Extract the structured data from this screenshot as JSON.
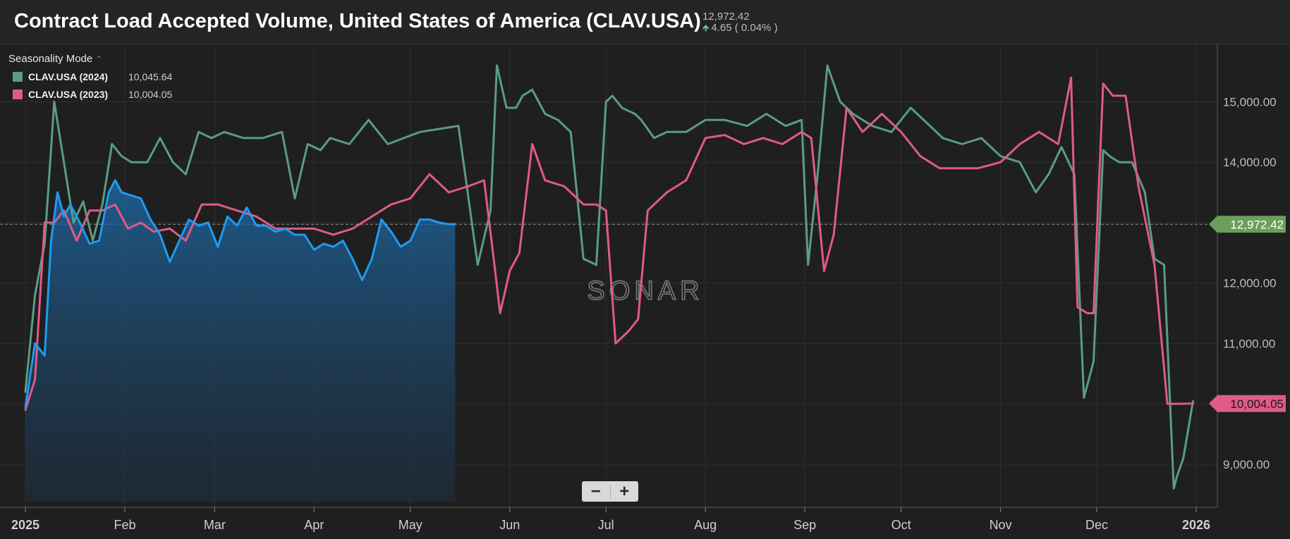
{
  "header": {
    "title": "Contract Load Accepted Volume, United States of America (CLAV.USA)",
    "price": "12,972.42",
    "change": "4.65 ( 0.04% )",
    "change_direction": "up"
  },
  "legend": {
    "mode_label": "Seasonality Mode",
    "mode_icon": "chevron-up-icon",
    "items": [
      {
        "name": "CLAV.USA (2024)",
        "value": "10,045.64",
        "color": "#5a9c86"
      },
      {
        "name": "CLAV.USA (2023)",
        "value": "10,004.05",
        "color": "#e05a8a"
      }
    ]
  },
  "watermark": "SONAR",
  "zoom": {
    "minus": "−",
    "plus": "+"
  },
  "colors": {
    "background": "#1f1f1f",
    "current_year": "#1e9bf0",
    "series_2024": "#5a9c86",
    "series_2023": "#e05a8a",
    "grid": "#2e2e2e"
  },
  "chart_data": {
    "type": "line",
    "mode": "seasonality",
    "x_range": [
      "2025-01-01",
      "2026-01-01"
    ],
    "x_ticks": [
      "2025",
      "Feb",
      "Mar",
      "Apr",
      "May",
      "Jun",
      "Jul",
      "Aug",
      "Sep",
      "Oct",
      "Nov",
      "Dec",
      "2026"
    ],
    "y_ticks": [
      9000,
      10000,
      11000,
      12000,
      13000,
      14000,
      15000
    ],
    "y_tick_labels": [
      "9,000.00",
      "10,000.00",
      "11,000.00",
      "12,000.00",
      "13,000.00",
      "14,000.00",
      "15,000.00"
    ],
    "ylim": [
      8380,
      15950
    ],
    "current_value": 12972.42,
    "current_label": "12,972.42",
    "last_label_2023": "10,004.05",
    "series": [
      {
        "name": "CLAV.USA",
        "color": "#1e9bf0",
        "fill": true,
        "x": [
          "2025-01-01",
          "2025-01-04",
          "2025-01-07",
          "2025-01-09",
          "2025-01-11",
          "2025-01-13",
          "2025-01-15",
          "2025-01-18",
          "2025-01-21",
          "2025-01-24",
          "2025-01-27",
          "2025-01-29",
          "2025-01-31",
          "2025-02-03",
          "2025-02-06",
          "2025-02-09",
          "2025-02-12",
          "2025-02-15",
          "2025-02-18",
          "2025-02-21",
          "2025-02-24",
          "2025-02-27",
          "2025-03-02",
          "2025-03-05",
          "2025-03-08",
          "2025-03-11",
          "2025-03-14",
          "2025-03-17",
          "2025-03-20",
          "2025-03-23",
          "2025-03-26",
          "2025-03-29",
          "2025-04-01",
          "2025-04-04",
          "2025-04-07",
          "2025-04-10",
          "2025-04-13",
          "2025-04-16",
          "2025-04-19",
          "2025-04-22",
          "2025-04-25",
          "2025-04-28",
          "2025-05-01",
          "2025-05-04",
          "2025-05-07",
          "2025-05-10",
          "2025-05-13",
          "2025-05-15"
        ],
        "y": [
          9950,
          11000,
          10800,
          12700,
          13500,
          13100,
          13300,
          13000,
          12650,
          12700,
          13500,
          13700,
          13500,
          13450,
          13400,
          13050,
          12800,
          12350,
          12700,
          13050,
          12950,
          13000,
          12600,
          13100,
          12950,
          13250,
          12950,
          12950,
          12850,
          12900,
          12800,
          12800,
          12550,
          12650,
          12600,
          12700,
          12400,
          12050,
          12400,
          13050,
          12850,
          12600,
          12700,
          13050,
          13050,
          13000,
          12972,
          12972
        ]
      },
      {
        "name": "CLAV.USA (2024)",
        "color": "#5a9c86",
        "x": [
          "2025-01-01",
          "2025-01-04",
          "2025-01-07",
          "2025-01-10",
          "2025-01-13",
          "2025-01-16",
          "2025-01-19",
          "2025-01-22",
          "2025-01-25",
          "2025-01-28",
          "2025-01-31",
          "2025-02-03",
          "2025-02-08",
          "2025-02-12",
          "2025-02-16",
          "2025-02-20",
          "2025-02-24",
          "2025-02-28",
          "2025-03-04",
          "2025-03-10",
          "2025-03-16",
          "2025-03-22",
          "2025-03-26",
          "2025-03-30",
          "2025-04-03",
          "2025-04-06",
          "2025-04-12",
          "2025-04-18",
          "2025-04-24",
          "2025-04-29",
          "2025-05-04",
          "2025-05-10",
          "2025-05-16",
          "2025-05-22",
          "2025-05-26",
          "2025-05-28",
          "2025-05-31",
          "2025-06-03",
          "2025-06-05",
          "2025-06-08",
          "2025-06-12",
          "2025-06-16",
          "2025-06-20",
          "2025-06-24",
          "2025-06-28",
          "2025-07-01",
          "2025-07-03",
          "2025-07-06",
          "2025-07-10",
          "2025-07-12",
          "2025-07-16",
          "2025-07-20",
          "2025-07-26",
          "2025-08-01",
          "2025-08-07",
          "2025-08-14",
          "2025-08-20",
          "2025-08-26",
          "2025-08-31",
          "2025-09-02",
          "2025-09-05",
          "2025-09-08",
          "2025-09-12",
          "2025-09-16",
          "2025-09-22",
          "2025-09-28",
          "2025-10-04",
          "2025-10-10",
          "2025-10-14",
          "2025-10-20",
          "2025-10-26",
          "2025-11-01",
          "2025-11-07",
          "2025-11-12",
          "2025-11-16",
          "2025-11-20",
          "2025-11-24",
          "2025-11-27",
          "2025-11-30",
          "2025-12-03",
          "2025-12-05",
          "2025-12-08",
          "2025-12-12",
          "2025-12-16",
          "2025-12-19",
          "2025-12-22",
          "2025-12-25",
          "2025-12-26",
          "2025-12-28",
          "2025-12-31"
        ],
        "y": [
          10200,
          11800,
          12650,
          15000,
          14000,
          13000,
          13350,
          12700,
          13300,
          14300,
          14100,
          14000,
          14000,
          14400,
          14000,
          13800,
          14500,
          14400,
          14500,
          14400,
          14400,
          14500,
          13400,
          14300,
          14200,
          14400,
          14300,
          14700,
          14300,
          14400,
          14500,
          14550,
          14600,
          12300,
          13200,
          15600,
          14900,
          14900,
          15100,
          15200,
          14800,
          14700,
          14500,
          12400,
          12300,
          15000,
          15100,
          14900,
          14800,
          14700,
          14400,
          14500,
          14500,
          14700,
          14700,
          14600,
          14800,
          14600,
          14700,
          12300,
          13800,
          15600,
          15000,
          14800,
          14600,
          14500,
          14900,
          14600,
          14400,
          14300,
          14400,
          14100,
          14000,
          13500,
          13800,
          14250,
          13800,
          10100,
          10700,
          14200,
          14100,
          14000,
          14000,
          13500,
          12400,
          12300,
          8600,
          8800,
          9100,
          10045
        ]
      },
      {
        "name": "CLAV.USA (2023)",
        "color": "#e05a8a",
        "x": [
          "2025-01-01",
          "2025-01-04",
          "2025-01-07",
          "2025-01-10",
          "2025-01-13",
          "2025-01-17",
          "2025-01-21",
          "2025-01-25",
          "2025-01-29",
          "2025-02-02",
          "2025-02-06",
          "2025-02-10",
          "2025-02-15",
          "2025-02-20",
          "2025-02-25",
          "2025-03-02",
          "2025-03-08",
          "2025-03-14",
          "2025-03-20",
          "2025-03-26",
          "2025-04-01",
          "2025-04-07",
          "2025-04-13",
          "2025-04-19",
          "2025-04-25",
          "2025-05-01",
          "2025-05-07",
          "2025-05-13",
          "2025-05-19",
          "2025-05-24",
          "2025-05-27",
          "2025-05-29",
          "2025-06-01",
          "2025-06-04",
          "2025-06-08",
          "2025-06-12",
          "2025-06-18",
          "2025-06-24",
          "2025-06-28",
          "2025-07-01",
          "2025-07-04",
          "2025-07-08",
          "2025-07-11",
          "2025-07-14",
          "2025-07-20",
          "2025-07-26",
          "2025-08-01",
          "2025-08-07",
          "2025-08-13",
          "2025-08-19",
          "2025-08-25",
          "2025-08-31",
          "2025-09-03",
          "2025-09-07",
          "2025-09-10",
          "2025-09-14",
          "2025-09-19",
          "2025-09-25",
          "2025-10-01",
          "2025-10-07",
          "2025-10-13",
          "2025-10-19",
          "2025-10-25",
          "2025-11-01",
          "2025-11-07",
          "2025-11-13",
          "2025-11-19",
          "2025-11-23",
          "2025-11-25",
          "2025-11-28",
          "2025-11-30",
          "2025-12-03",
          "2025-12-06",
          "2025-12-10",
          "2025-12-14",
          "2025-12-19",
          "2025-12-23",
          "2025-12-26",
          "2025-12-31"
        ],
        "y": [
          9900,
          10400,
          13000,
          13000,
          13200,
          12700,
          13200,
          13200,
          13300,
          12900,
          13000,
          12850,
          12900,
          12700,
          13300,
          13300,
          13200,
          13100,
          12900,
          12900,
          12900,
          12800,
          12900,
          13100,
          13300,
          13400,
          13800,
          13500,
          13600,
          13700,
          12400,
          11500,
          12200,
          12500,
          14300,
          13700,
          13600,
          13300,
          13300,
          13200,
          11000,
          11200,
          11400,
          13200,
          13500,
          13700,
          14400,
          14450,
          14300,
          14400,
          14300,
          14500,
          14400,
          12200,
          12800,
          14900,
          14500,
          14800,
          14500,
          14100,
          13900,
          13900,
          13900,
          14000,
          14300,
          14500,
          14300,
          15400,
          11600,
          11500,
          11500,
          15300,
          15100,
          15100,
          13600,
          12300,
          10000,
          10000,
          10004
        ]
      }
    ]
  }
}
